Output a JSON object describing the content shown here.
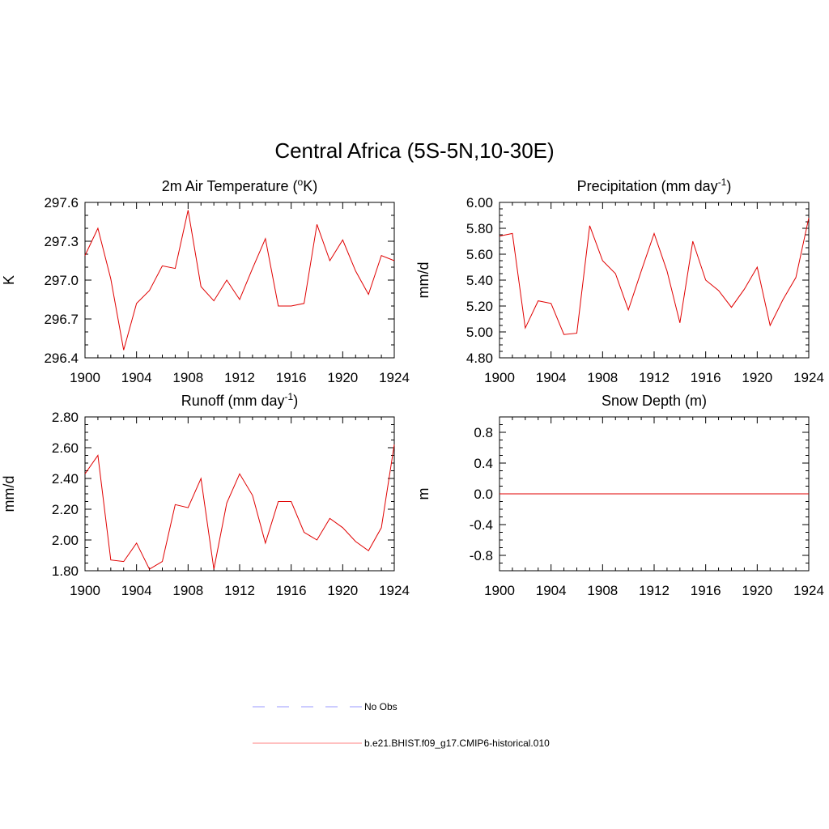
{
  "page_title": "Central Africa (5S-5N,10-30E)",
  "legend": [
    {
      "label": "No Obs",
      "color": "#9999ff",
      "dash": true
    },
    {
      "label": "b.e21.BHIST.f09_g17.CMIP6-historical.010",
      "color": "#ff8080",
      "dash": false
    }
  ],
  "chart_data": [
    {
      "type": "line",
      "title": "2m Air Temperature (",
      "title_sup": "o",
      "title_rest": "K)",
      "ylabel": "K",
      "xlim": [
        1900,
        1924
      ],
      "xticks": [
        1900,
        1904,
        1908,
        1912,
        1916,
        1920,
        1924
      ],
      "ylim": [
        296.4,
        297.6
      ],
      "yticks": [
        296.4,
        296.7,
        297.0,
        297.3,
        297.6
      ],
      "ytick_labels": [
        "296.4",
        "296.7",
        "297.0",
        "297.3",
        "297.6"
      ],
      "ytick_minor": 0.1,
      "x": [
        1900,
        1901,
        1902,
        1903,
        1904,
        1905,
        1906,
        1907,
        1908,
        1909,
        1910,
        1911,
        1912,
        1913,
        1914,
        1915,
        1916,
        1917,
        1918,
        1919,
        1920,
        1921,
        1922,
        1923,
        1924
      ],
      "series": [
        {
          "color": "#e00000",
          "values": [
            297.19,
            297.4,
            297.01,
            296.46,
            296.82,
            296.92,
            297.11,
            297.09,
            297.54,
            296.95,
            296.84,
            297.0,
            296.85,
            297.09,
            297.32,
            296.8,
            296.8,
            296.82,
            297.43,
            297.15,
            297.31,
            297.07,
            296.89,
            297.19,
            297.15
          ]
        }
      ]
    },
    {
      "type": "line",
      "title": "Precipitation (mm day",
      "title_sup": "-1",
      "title_rest": ")",
      "ylabel": "mm/d",
      "xlim": [
        1900,
        1924
      ],
      "xticks": [
        1900,
        1904,
        1908,
        1912,
        1916,
        1920,
        1924
      ],
      "ylim": [
        4.8,
        6.0
      ],
      "yticks": [
        4.8,
        5.0,
        5.2,
        5.4,
        5.6,
        5.8,
        6.0
      ],
      "ytick_labels": [
        "4.80",
        "5.00",
        "5.20",
        "5.40",
        "5.60",
        "5.80",
        "6.00"
      ],
      "ytick_minor": 0.05,
      "x": [
        1900,
        1901,
        1902,
        1903,
        1904,
        1905,
        1906,
        1907,
        1908,
        1909,
        1910,
        1911,
        1912,
        1913,
        1914,
        1915,
        1916,
        1917,
        1918,
        1919,
        1920,
        1921,
        1922,
        1923,
        1924
      ],
      "series": [
        {
          "color": "#e00000",
          "values": [
            5.74,
            5.76,
            5.03,
            5.24,
            5.22,
            4.98,
            4.99,
            5.82,
            5.55,
            5.45,
            5.17,
            5.47,
            5.76,
            5.47,
            5.07,
            5.7,
            5.4,
            5.32,
            5.19,
            5.33,
            5.5,
            5.05,
            5.25,
            5.42,
            5.88
          ]
        }
      ]
    },
    {
      "type": "line",
      "title": "Runoff (mm day",
      "title_sup": "-1",
      "title_rest": ")",
      "ylabel": "mm/d",
      "xlim": [
        1900,
        1924
      ],
      "xticks": [
        1900,
        1904,
        1908,
        1912,
        1916,
        1920,
        1924
      ],
      "ylim": [
        1.8,
        2.8
      ],
      "yticks": [
        1.8,
        2.0,
        2.2,
        2.4,
        2.6,
        2.8
      ],
      "ytick_labels": [
        "1.80",
        "2.00",
        "2.20",
        "2.40",
        "2.60",
        "2.80"
      ],
      "ytick_minor": 0.05,
      "x": [
        1900,
        1901,
        1902,
        1903,
        1904,
        1905,
        1906,
        1907,
        1908,
        1909,
        1910,
        1911,
        1912,
        1913,
        1914,
        1915,
        1916,
        1917,
        1918,
        1919,
        1920,
        1921,
        1922,
        1923,
        1924
      ],
      "series": [
        {
          "color": "#e00000",
          "values": [
            2.43,
            2.55,
            1.87,
            1.86,
            1.98,
            1.81,
            1.86,
            2.23,
            2.21,
            2.4,
            1.81,
            2.24,
            2.43,
            2.29,
            1.98,
            2.25,
            2.25,
            2.05,
            2.0,
            2.14,
            2.08,
            1.99,
            1.93,
            2.08,
            2.62
          ]
        }
      ]
    },
    {
      "type": "line",
      "title": "Snow Depth (m)",
      "title_sup": "",
      "title_rest": "",
      "ylabel": "m",
      "xlim": [
        1900,
        1924
      ],
      "xticks": [
        1900,
        1904,
        1908,
        1912,
        1916,
        1920,
        1924
      ],
      "ylim": [
        -1.0,
        1.0
      ],
      "yticks": [
        -0.8,
        -0.4,
        0.0,
        0.4,
        0.8
      ],
      "ytick_labels": [
        "-0.8",
        "-0.4",
        "0.0",
        "0.4",
        "0.8"
      ],
      "ytick_minor": 0.1,
      "x": [
        1900,
        1901,
        1902,
        1903,
        1904,
        1905,
        1906,
        1907,
        1908,
        1909,
        1910,
        1911,
        1912,
        1913,
        1914,
        1915,
        1916,
        1917,
        1918,
        1919,
        1920,
        1921,
        1922,
        1923,
        1924
      ],
      "series": [
        {
          "color": "#e00000",
          "values": [
            0,
            0,
            0,
            0,
            0,
            0,
            0,
            0,
            0,
            0,
            0,
            0,
            0,
            0,
            0,
            0,
            0,
            0,
            0,
            0,
            0,
            0,
            0,
            0,
            0
          ]
        }
      ]
    }
  ]
}
